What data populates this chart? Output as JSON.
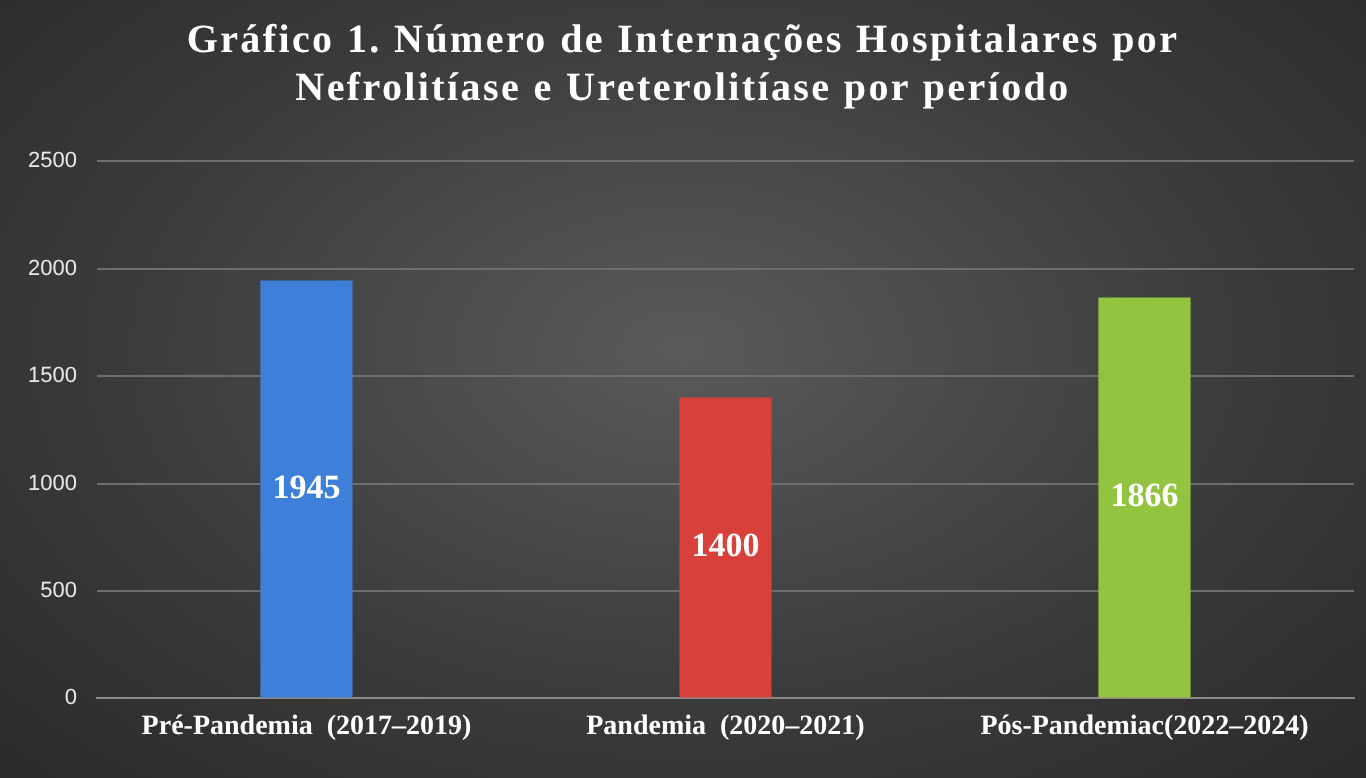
{
  "chart_data": {
    "type": "bar",
    "title": "Gráfico 1. Número de Internações Hospitalares por Nefrolitíase e Ureterolitíase por período",
    "categories": [
      "Pré-Pandemia  (2017–2019)",
      "Pandemia  (2020–2021)",
      "Pós-Pandemiac(2022–2024)"
    ],
    "values": [
      1945,
      1400,
      1866
    ],
    "colors": [
      "#3d7fd9",
      "#d8403b",
      "#93c440"
    ],
    "ylim": [
      0,
      2500
    ],
    "yticks": [
      0,
      500,
      1000,
      1500,
      2000,
      2500
    ],
    "grid": "y",
    "data_labels": true
  }
}
